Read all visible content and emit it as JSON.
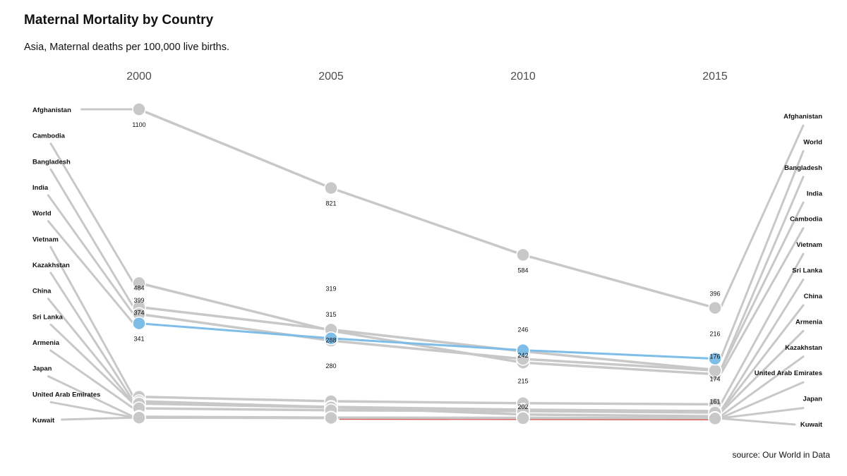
{
  "title": "Maternal Mortality by Country",
  "subtitle": "Asia, Maternal deaths per 100,000 live births.",
  "source": "source: Our World in Data",
  "colors": {
    "line": "#c8c8c8",
    "highlight": "#7dbde8",
    "lowest": "#d9534f"
  },
  "chart_data": {
    "type": "line",
    "x": [
      "2000",
      "2005",
      "2010",
      "2015"
    ],
    "highlight": "World",
    "series": [
      {
        "name": "Afghanistan",
        "values": [
          1100,
          821,
          584,
          396
        ]
      },
      {
        "name": "Cambodia",
        "values": [
          484,
          315,
          202,
          161
        ]
      },
      {
        "name": "Bangladesh",
        "values": [
          399,
          319,
          242,
          176
        ]
      },
      {
        "name": "India",
        "values": [
          374,
          280,
          215,
          174
        ]
      },
      {
        "name": "World",
        "values": [
          341,
          288,
          246,
          216
        ]
      },
      {
        "name": "Vietnam",
        "values": [
          81,
          65,
          58,
          54
        ]
      },
      {
        "name": "Kazakhstan",
        "values": [
          65,
          44,
          18,
          12
        ]
      },
      {
        "name": "China",
        "values": [
          58,
          45,
          35,
          27
        ]
      },
      {
        "name": "Sri Lanka",
        "values": [
          57,
          43,
          35,
          30
        ]
      },
      {
        "name": "Armenia",
        "values": [
          40,
          33,
          30,
          25
        ]
      },
      {
        "name": "Japan",
        "values": [
          10,
          7,
          6,
          5
        ]
      },
      {
        "name": "United Arab Emirates",
        "values": [
          8,
          6,
          6,
          6
        ]
      },
      {
        "name": "Kuwait",
        "values": [
          7,
          6,
          5,
          4
        ]
      }
    ],
    "data_labels": {
      "2000": [
        "1100",
        "484",
        "399",
        "374",
        "341"
      ],
      "2005": [
        "821",
        "319",
        "315",
        "288",
        "280"
      ],
      "2010": [
        "584",
        "246",
        "242",
        "215",
        "202"
      ],
      "2015": [
        "396",
        "216",
        "176",
        "174",
        "161"
      ]
    },
    "left_order": [
      "Afghanistan",
      "Cambodia",
      "Bangladesh",
      "India",
      "World",
      "Vietnam",
      "Kazakhstan",
      "China",
      "Sri Lanka",
      "Armenia",
      "Japan",
      "United Arab Emirates",
      "Kuwait"
    ],
    "right_order": [
      "Afghanistan",
      "World",
      "Bangladesh",
      "India",
      "Cambodia",
      "Vietnam",
      "Sri Lanka",
      "China",
      "Armenia",
      "Kazakhstan",
      "United Arab Emirates",
      "Japan",
      "Kuwait"
    ],
    "ylim": [
      0,
      1100
    ],
    "grid": false,
    "legend": "none"
  }
}
